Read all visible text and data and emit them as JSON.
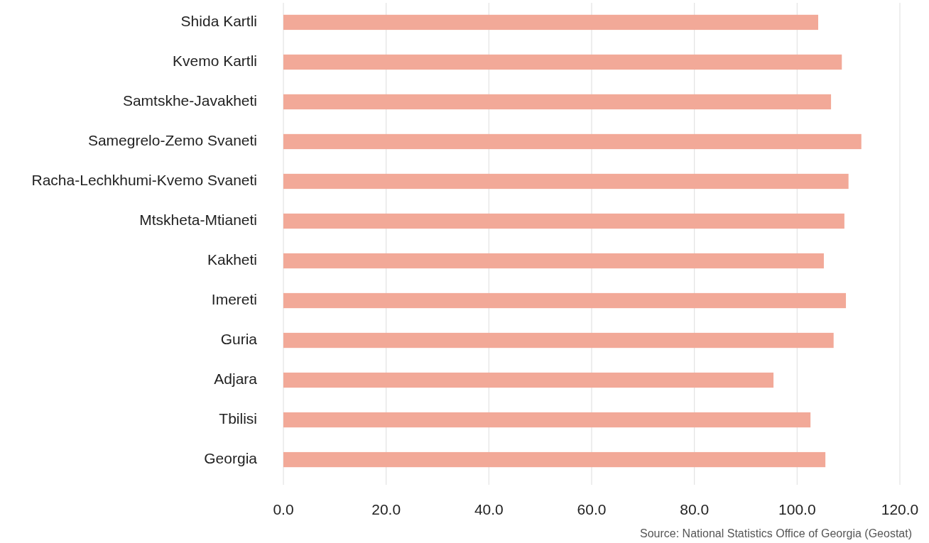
{
  "chart_data": {
    "type": "bar",
    "orientation": "horizontal",
    "categories": [
      "Shida Kartli",
      "Kvemo Kartli",
      "Samtskhe-Javakheti",
      "Samegrelo-Zemo Svaneti",
      "Racha-Lechkhumi-Kvemo Svaneti",
      "Mtskheta-Mtianeti",
      "Kakheti",
      "Imereti",
      "Guria",
      "Adjara",
      "Tbilisi",
      "Georgia"
    ],
    "values": [
      104.1,
      108.7,
      106.6,
      112.5,
      110.0,
      109.2,
      105.2,
      109.5,
      107.1,
      95.4,
      102.6,
      105.5
    ],
    "color": "#f2a998",
    "xlim": [
      0,
      120
    ],
    "xticks": [
      {
        "value": 0,
        "label": "0.0"
      },
      {
        "value": 20,
        "label": "20.0"
      },
      {
        "value": 40,
        "label": "40.0"
      },
      {
        "value": 60,
        "label": "60.0"
      },
      {
        "value": 80,
        "label": "80.0"
      },
      {
        "value": 100,
        "label": "100.0"
      },
      {
        "value": 120,
        "label": "120.0"
      }
    ],
    "grid": "x",
    "annotations": [
      "Source: National Statistics Office of Georgia (Geostat)"
    ]
  }
}
